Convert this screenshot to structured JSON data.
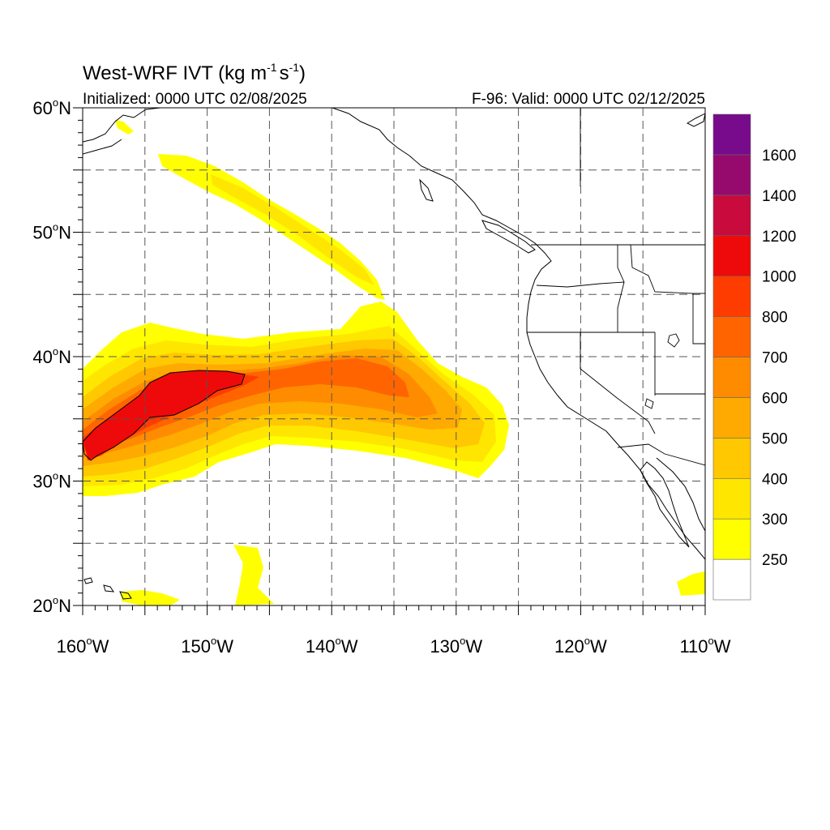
{
  "title": {
    "main": "West-WRF IVT (kg m",
    "unit_exp1": "-1",
    "unit_mid": "s",
    "unit_exp2": "-1",
    "unit_close": ")"
  },
  "subtitle_left": "Initialized: 0000 UTC 02/08/2025",
  "subtitle_right": "F-96: Valid: 0000 UTC 02/12/2025",
  "map": {
    "lon_range": [
      -160,
      -110
    ],
    "lat_range": [
      20,
      60
    ],
    "lon_labels": [
      {
        "lon": -160,
        "text": "160",
        "suffix": "W"
      },
      {
        "lon": -150,
        "text": "150",
        "suffix": "W"
      },
      {
        "lon": -140,
        "text": "140",
        "suffix": "W"
      },
      {
        "lon": -130,
        "text": "130",
        "suffix": "W"
      },
      {
        "lon": -120,
        "text": "120",
        "suffix": "W"
      },
      {
        "lon": -110,
        "text": "110",
        "suffix": "W"
      }
    ],
    "lat_labels": [
      {
        "lat": 60,
        "text": "60",
        "suffix": "N"
      },
      {
        "lat": 50,
        "text": "50",
        "suffix": "N"
      },
      {
        "lat": 40,
        "text": "40",
        "suffix": "N"
      },
      {
        "lat": 30,
        "text": "30",
        "suffix": "N"
      },
      {
        "lat": 20,
        "text": "20",
        "suffix": "N"
      }
    ],
    "grid_lons": [
      -155,
      -150,
      -145,
      -140,
      -135,
      -130,
      -125,
      -120,
      -115
    ],
    "grid_lats": [
      25,
      30,
      35,
      40,
      45,
      50,
      55
    ]
  },
  "colorbar": {
    "levels": [
      250,
      300,
      400,
      500,
      600,
      700,
      800,
      1000,
      1200,
      1400,
      1600
    ],
    "labels": [
      "250",
      "300",
      "400",
      "500",
      "600",
      "700",
      "800",
      "1000",
      "1200",
      "1400",
      "1600"
    ],
    "colors": [
      "#ffffff",
      "#ffff00",
      "#ffe600",
      "#ffc800",
      "#ffaa00",
      "#ff8c00",
      "#ff6400",
      "#ff3c00",
      "#ee0a0a",
      "#c80a3c",
      "#960a6e",
      "#780a8c"
    ]
  },
  "colors": {
    "land_outline": "#000000",
    "state_lines": "#000000",
    "grid": "#555555"
  }
}
